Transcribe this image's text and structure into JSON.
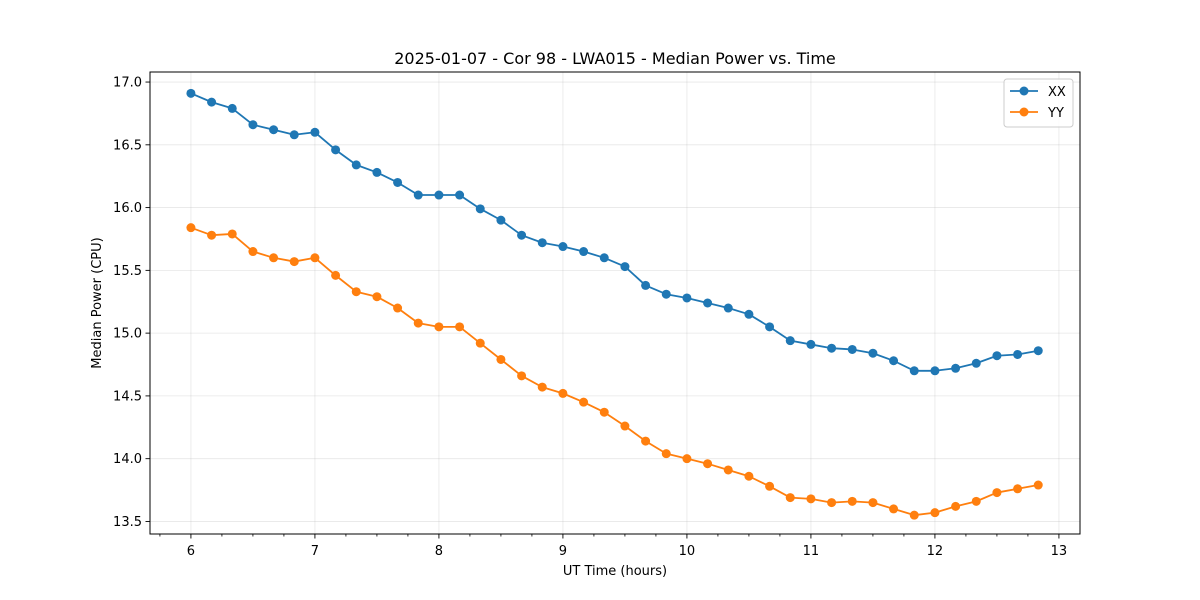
{
  "chart_data": {
    "type": "line",
    "title": "2025-01-07 - Cor 98 - LWA015 - Median Power vs. Time",
    "xlabel": "UT Time (hours)",
    "ylabel": "Median Power (CPU)",
    "xlim": [
      5.67,
      13.17
    ],
    "ylim": [
      13.4,
      17.08
    ],
    "xticks": [
      6,
      7,
      8,
      9,
      10,
      11,
      12,
      13
    ],
    "xtick_labels": [
      "6",
      "7",
      "8",
      "9",
      "10",
      "11",
      "12",
      "13"
    ],
    "minor_x_step": 0.25,
    "yticks": [
      13.5,
      14.0,
      14.5,
      15.0,
      15.5,
      16.0,
      16.5,
      17.0
    ],
    "ytick_labels": [
      "13.5",
      "14.0",
      "14.5",
      "15.0",
      "15.5",
      "16.0",
      "16.5",
      "17.0"
    ],
    "grid": true,
    "legend_position": "upper-right",
    "x": [
      6.0,
      6.1667,
      6.3333,
      6.5,
      6.6667,
      6.8333,
      7.0,
      7.1667,
      7.3333,
      7.5,
      7.6667,
      7.8333,
      8.0,
      8.1667,
      8.3333,
      8.5,
      8.6667,
      8.8333,
      9.0,
      9.1667,
      9.3333,
      9.5,
      9.6667,
      9.8333,
      10.0,
      10.1667,
      10.3333,
      10.5,
      10.6667,
      10.8333,
      11.0,
      11.1667,
      11.3333,
      11.5,
      11.6667,
      11.8333,
      12.0,
      12.1667,
      12.3333,
      12.5,
      12.6667,
      12.8333
    ],
    "series": [
      {
        "name": "XX",
        "color": "#1f77b4",
        "values": [
          16.91,
          16.84,
          16.79,
          16.66,
          16.62,
          16.58,
          16.6,
          16.46,
          16.34,
          16.28,
          16.2,
          16.1,
          16.1,
          16.1,
          15.99,
          15.9,
          15.78,
          15.72,
          15.69,
          15.65,
          15.6,
          15.53,
          15.38,
          15.31,
          15.28,
          15.24,
          15.2,
          15.15,
          15.05,
          14.94,
          14.91,
          14.88,
          14.87,
          14.84,
          14.78,
          14.7,
          14.7,
          14.72,
          14.76,
          14.82,
          14.83,
          14.86
        ]
      },
      {
        "name": "YY",
        "color": "#ff7f0e",
        "values": [
          15.84,
          15.78,
          15.79,
          15.65,
          15.6,
          15.57,
          15.6,
          15.46,
          15.33,
          15.29,
          15.2,
          15.08,
          15.05,
          15.05,
          14.92,
          14.79,
          14.66,
          14.57,
          14.52,
          14.45,
          14.37,
          14.26,
          14.14,
          14.04,
          14.0,
          13.96,
          13.91,
          13.86,
          13.78,
          13.69,
          13.68,
          13.65,
          13.66,
          13.65,
          13.6,
          13.55,
          13.57,
          13.62,
          13.66,
          13.73,
          13.76,
          13.79
        ]
      }
    ]
  }
}
